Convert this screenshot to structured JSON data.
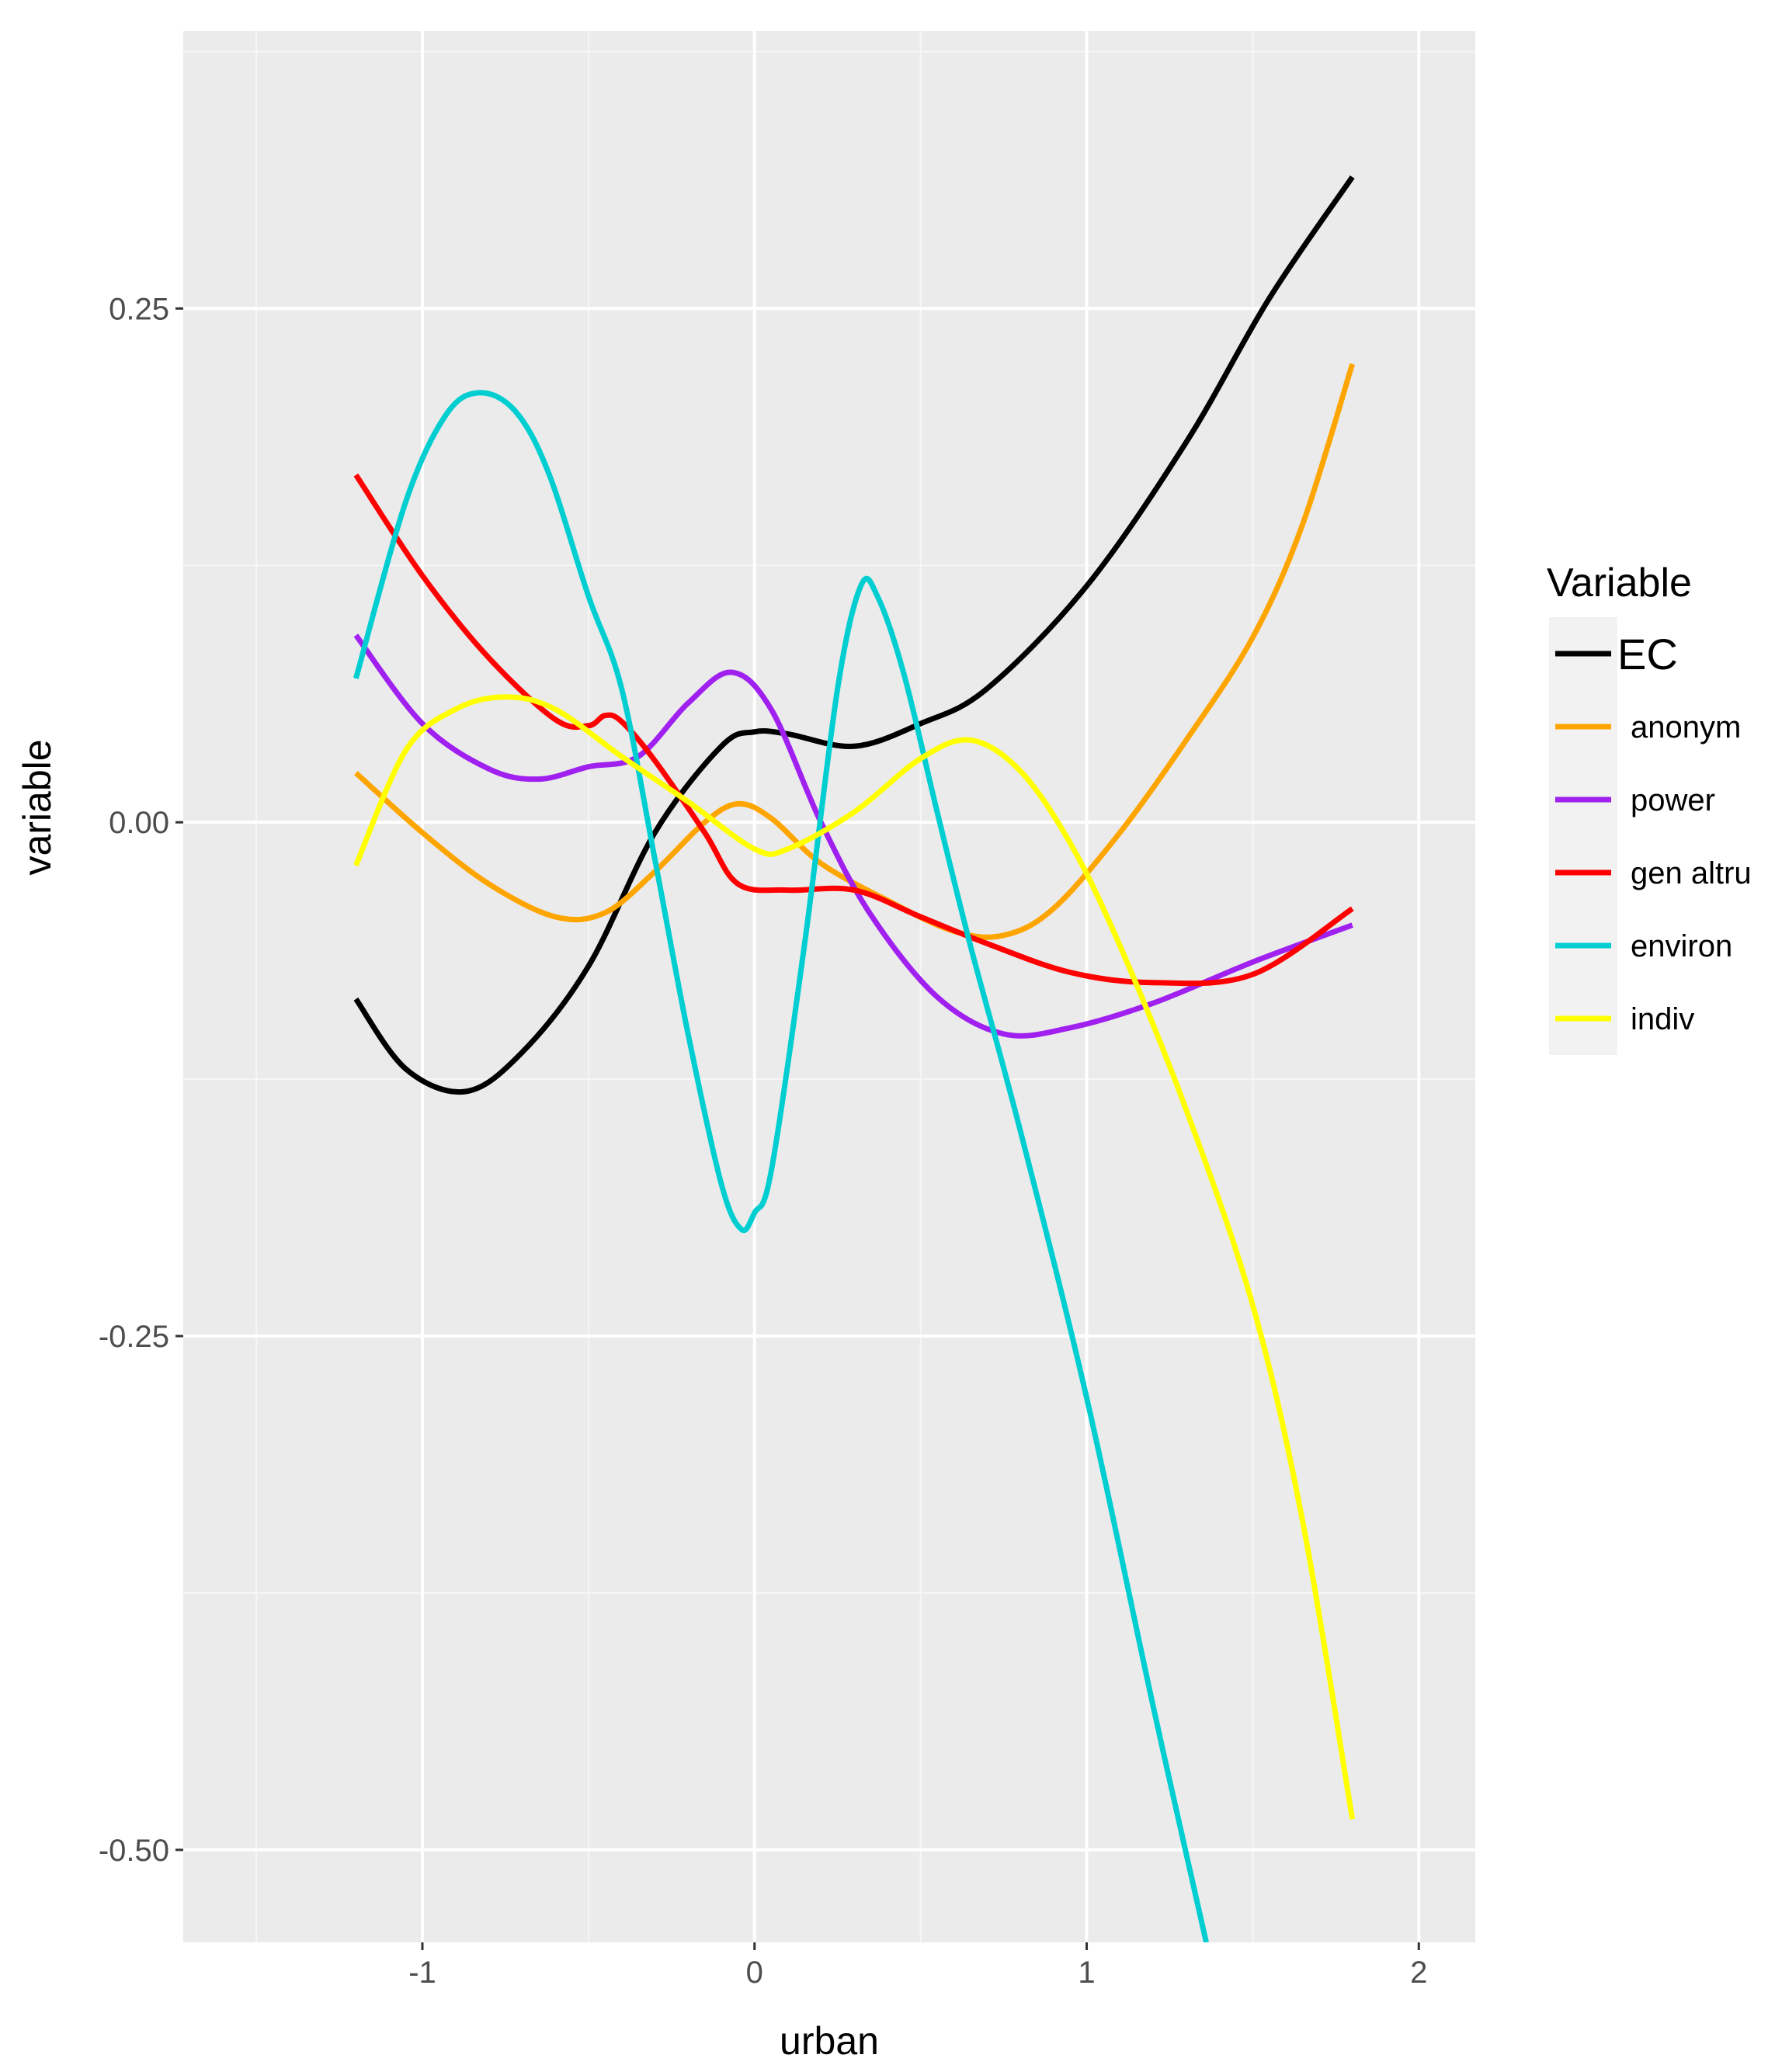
{
  "chart_data": {
    "type": "line",
    "title": "",
    "xlabel": "urban",
    "ylabel": "variable",
    "xlim": [
      -1.72,
      2.17
    ],
    "ylim": [
      -0.545,
      0.385
    ],
    "x_ticks": [
      -1,
      0,
      1,
      2
    ],
    "x_tick_labels": [
      "-1",
      "0",
      "1",
      "2"
    ],
    "y_ticks": [
      -0.5,
      -0.25,
      0.0,
      0.25
    ],
    "y_tick_labels": [
      "-0.50",
      "-0.25",
      "0.00",
      "0.25"
    ],
    "grid": true,
    "legend": {
      "title": "Variable",
      "position": "right"
    },
    "series": [
      {
        "name": "EC",
        "color": "#000000",
        "points": [
          [
            -1.2,
            -0.086
          ],
          [
            -1.05,
            -0.12
          ],
          [
            -0.87,
            -0.131
          ],
          [
            -0.7,
            -0.112
          ],
          [
            -0.5,
            -0.07
          ],
          [
            -0.3,
            -0.005
          ],
          [
            -0.1,
            0.037
          ],
          [
            0.0,
            0.044
          ],
          [
            0.1,
            0.043
          ],
          [
            0.3,
            0.037
          ],
          [
            0.5,
            0.048
          ],
          [
            0.7,
            0.065
          ],
          [
            1.0,
            0.115
          ],
          [
            1.3,
            0.185
          ],
          [
            1.55,
            0.255
          ],
          [
            1.8,
            0.314
          ]
        ]
      },
      {
        "name": "anonym",
        "color": "#FFA500",
        "points": [
          [
            -1.2,
            0.024
          ],
          [
            -1.0,
            -0.005
          ],
          [
            -0.8,
            -0.03
          ],
          [
            -0.6,
            -0.046
          ],
          [
            -0.45,
            -0.044
          ],
          [
            -0.3,
            -0.024
          ],
          [
            -0.15,
            0.0
          ],
          [
            -0.05,
            0.009
          ],
          [
            0.05,
            0.002
          ],
          [
            0.2,
            -0.02
          ],
          [
            0.4,
            -0.038
          ],
          [
            0.6,
            -0.053
          ],
          [
            0.75,
            -0.055
          ],
          [
            0.9,
            -0.042
          ],
          [
            1.1,
            -0.005
          ],
          [
            1.3,
            0.04
          ],
          [
            1.5,
            0.09
          ],
          [
            1.65,
            0.145
          ],
          [
            1.8,
            0.223
          ]
        ]
      },
      {
        "name": "power",
        "color": "#A020F0",
        "points": [
          [
            -1.2,
            0.091
          ],
          [
            -1.0,
            0.048
          ],
          [
            -0.8,
            0.026
          ],
          [
            -0.65,
            0.021
          ],
          [
            -0.5,
            0.027
          ],
          [
            -0.35,
            0.032
          ],
          [
            -0.2,
            0.058
          ],
          [
            -0.07,
            0.073
          ],
          [
            0.05,
            0.055
          ],
          [
            0.2,
            0.0
          ],
          [
            0.35,
            -0.045
          ],
          [
            0.55,
            -0.085
          ],
          [
            0.75,
            -0.103
          ],
          [
            0.95,
            -0.1
          ],
          [
            1.2,
            -0.088
          ],
          [
            1.5,
            -0.068
          ],
          [
            1.8,
            -0.05
          ]
        ]
      },
      {
        "name": "gen altru",
        "color": "#FF0000",
        "points": [
          [
            -1.2,
            0.169
          ],
          [
            -1.0,
            0.12
          ],
          [
            -0.8,
            0.08
          ],
          [
            -0.6,
            0.05
          ],
          [
            -0.5,
            0.047
          ],
          [
            -0.45,
            0.052
          ],
          [
            -0.4,
            0.049
          ],
          [
            -0.3,
            0.03
          ],
          [
            -0.15,
            -0.005
          ],
          [
            -0.05,
            -0.03
          ],
          [
            0.1,
            -0.033
          ],
          [
            0.3,
            -0.033
          ],
          [
            0.5,
            -0.046
          ],
          [
            0.7,
            -0.059
          ],
          [
            0.95,
            -0.073
          ],
          [
            1.2,
            -0.078
          ],
          [
            1.5,
            -0.074
          ],
          [
            1.8,
            -0.042
          ]
        ]
      },
      {
        "name": "environ",
        "color": "#00CED1",
        "points": [
          [
            -1.2,
            0.07
          ],
          [
            -1.05,
            0.156
          ],
          [
            -0.93,
            0.198
          ],
          [
            -0.83,
            0.209
          ],
          [
            -0.72,
            0.2
          ],
          [
            -0.62,
            0.17
          ],
          [
            -0.5,
            0.11
          ],
          [
            -0.4,
            0.065
          ],
          [
            -0.3,
            -0.018
          ],
          [
            -0.2,
            -0.103
          ],
          [
            -0.1,
            -0.176
          ],
          [
            -0.04,
            -0.198
          ],
          [
            0.0,
            -0.19
          ],
          [
            0.05,
            -0.17
          ],
          [
            0.15,
            -0.06
          ],
          [
            0.25,
            0.065
          ],
          [
            0.32,
            0.115
          ],
          [
            0.37,
            0.11
          ],
          [
            0.45,
            0.072
          ],
          [
            0.55,
            0.005
          ],
          [
            0.65,
            -0.06
          ],
          [
            0.8,
            -0.15
          ],
          [
            1.0,
            -0.28
          ],
          [
            1.2,
            -0.43
          ],
          [
            1.36,
            -0.545
          ]
        ]
      },
      {
        "name": "indiv",
        "color": "#FFFF00",
        "points": [
          [
            -1.2,
            -0.021
          ],
          [
            -1.05,
            0.035
          ],
          [
            -0.9,
            0.055
          ],
          [
            -0.75,
            0.061
          ],
          [
            -0.6,
            0.055
          ],
          [
            -0.4,
            0.032
          ],
          [
            -0.2,
            0.01
          ],
          [
            0.0,
            -0.013
          ],
          [
            0.1,
            -0.013
          ],
          [
            0.3,
            0.005
          ],
          [
            0.5,
            0.031
          ],
          [
            0.65,
            0.04
          ],
          [
            0.8,
            0.025
          ],
          [
            0.95,
            -0.01
          ],
          [
            1.1,
            -0.06
          ],
          [
            1.3,
            -0.14
          ],
          [
            1.5,
            -0.235
          ],
          [
            1.65,
            -0.34
          ],
          [
            1.8,
            -0.485
          ]
        ]
      }
    ]
  }
}
